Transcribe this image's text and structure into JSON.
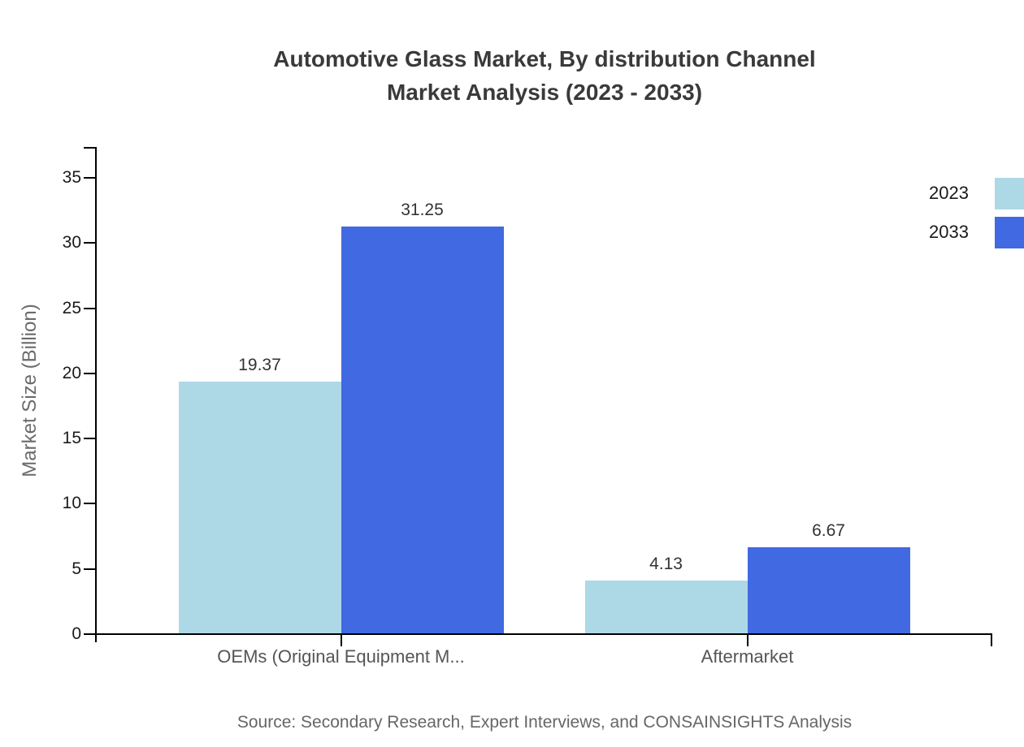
{
  "title": {
    "line1": "Automotive Glass Market, By distribution Channel",
    "line2": "Market Analysis (2023 - 2033)"
  },
  "y_axis_label": "Market Size (Billion)",
  "source_note": "Source: Secondary Research, Expert Interviews, and CONSAINSIGHTS Analysis",
  "colors": {
    "series_2023": "#ADD8E6",
    "series_2033": "#4169E1",
    "axis": "#000000",
    "title_text": "#3a3a3a",
    "tick_label_text": "#1a1a1a",
    "category_label_text": "#555555",
    "muted_text": "#666666"
  },
  "chart_data": {
    "type": "bar",
    "title": "Automotive Glass Market, By distribution Channel Market Analysis (2023 - 2033)",
    "categories": [
      "OEMs (Original Equipment M...",
      "Aftermarket"
    ],
    "series": [
      {
        "name": "2023",
        "color": "#ADD8E6",
        "values": [
          19.37,
          4.13
        ]
      },
      {
        "name": "2033",
        "color": "#4169E1",
        "values": [
          31.25,
          6.67
        ]
      }
    ],
    "xlabel": "",
    "ylabel": "Market Size (Billion)",
    "ylim": [
      0,
      37.5
    ],
    "yticks": [
      0,
      5,
      10,
      15,
      20,
      25,
      30,
      35
    ],
    "grid": false,
    "legend_position": "top-right",
    "value_labels": true,
    "value_label_decimals": 2
  }
}
